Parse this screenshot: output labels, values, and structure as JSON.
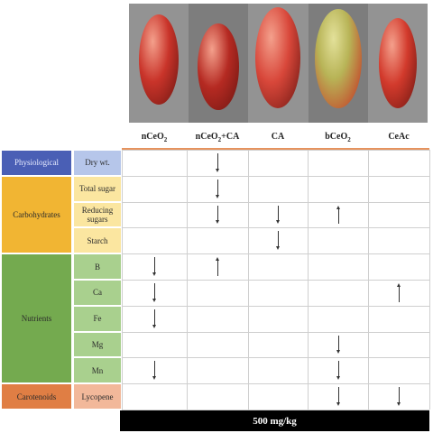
{
  "columns": [
    {
      "base": "nCeO",
      "sub": "2",
      "tail": ""
    },
    {
      "base": "nCeO",
      "sub": "2",
      "tail": "+CA"
    },
    {
      "base": "CA",
      "sub": "",
      "tail": ""
    },
    {
      "base": "bCeO",
      "sub": "2",
      "tail": ""
    },
    {
      "base": "CeAc",
      "sub": "",
      "tail": ""
    }
  ],
  "categories": [
    {
      "label": "Physiological",
      "color": "#4a5fb5"
    },
    {
      "label": "Carbohydrates",
      "color": "#f1b533"
    },
    {
      "label": "Nutrients",
      "color": "#74aa4f"
    },
    {
      "label": "Carotenoids",
      "color": "#e07e44"
    }
  ],
  "rows": [
    {
      "label": "Dry wt.",
      "color": "#b6c6ea",
      "arrows": [
        "",
        "down",
        "",
        "",
        ""
      ]
    },
    {
      "label": "Total sugar",
      "color": "#fbe6a0",
      "arrows": [
        "",
        "down",
        "",
        "",
        ""
      ]
    },
    {
      "label": "Reducing sugars",
      "color": "#fbe6a0",
      "arrows": [
        "",
        "down",
        "down",
        "up",
        ""
      ]
    },
    {
      "label": "Starch",
      "color": "#fbe6a0",
      "arrows": [
        "",
        "",
        "down",
        "",
        ""
      ]
    },
    {
      "label": "B",
      "color": "#a9d08e",
      "arrows": [
        "down",
        "up",
        "",
        "",
        ""
      ]
    },
    {
      "label": "Ca",
      "color": "#a9d08e",
      "arrows": [
        "down",
        "",
        "",
        "",
        "up"
      ]
    },
    {
      "label": "Fe",
      "color": "#a9d08e",
      "arrows": [
        "down",
        "",
        "",
        "",
        ""
      ]
    },
    {
      "label": "Mg",
      "color": "#a9d08e",
      "arrows": [
        "",
        "",
        "",
        "down",
        ""
      ]
    },
    {
      "label": "Mn",
      "color": "#a9d08e",
      "arrows": [
        "down",
        "",
        "",
        "down",
        ""
      ]
    },
    {
      "label": "Lycopene",
      "color": "#f2b89a",
      "arrows": [
        "",
        "",
        "",
        "down",
        "down"
      ]
    }
  ],
  "footer": "500 mg/kg",
  "photo_tomatoes": [
    {
      "color": "#c9342a"
    },
    {
      "color": "#b52a22"
    },
    {
      "color": "#d8473a"
    },
    {
      "color": "#a8a84a"
    },
    {
      "color": "#d23a2c"
    }
  ]
}
